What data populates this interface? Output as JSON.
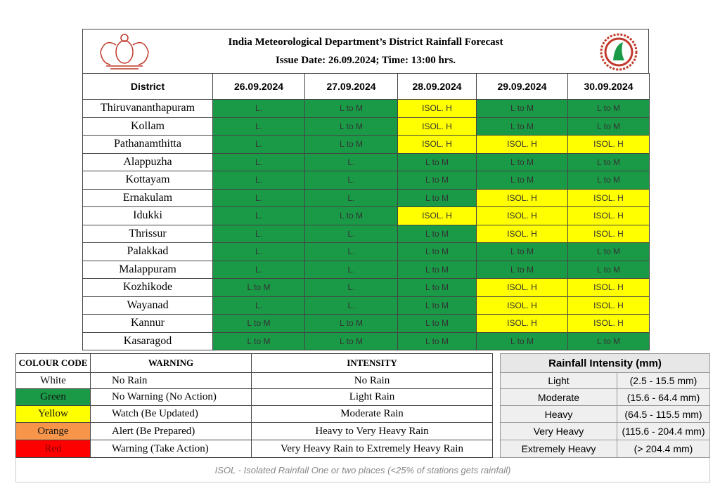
{
  "header": {
    "title": "India Meteorological Department’s District Rainfall Forecast",
    "issue": "Issue Date: 26.09.2024;  Time: 13:00 hrs."
  },
  "table": {
    "columns": [
      "District",
      "26.09.2024",
      "27.09.2024",
      "28.09.2024",
      "29.09.2024",
      "30.09.2024"
    ],
    "rows": [
      {
        "district": "Thiruvananthapuram",
        "forecast": [
          "L.",
          "L to M",
          "ISOL. H",
          "L to M",
          "L to M"
        ],
        "colors": [
          "#1a9a47",
          "#1a9a47",
          "#ffff00",
          "#1a9a47",
          "#1a9a47"
        ]
      },
      {
        "district": "Kollam",
        "forecast": [
          "L.",
          "L to M",
          "ISOL. H",
          "L to M",
          "L to M"
        ],
        "colors": [
          "#1a9a47",
          "#1a9a47",
          "#ffff00",
          "#1a9a47",
          "#1a9a47"
        ]
      },
      {
        "district": "Pathanamthitta",
        "forecast": [
          "L.",
          "L to M",
          "ISOL. H",
          "ISOL. H",
          "ISOL. H"
        ],
        "colors": [
          "#1a9a47",
          "#1a9a47",
          "#ffff00",
          "#ffff00",
          "#ffff00"
        ]
      },
      {
        "district": "Alappuzha",
        "forecast": [
          "L.",
          "L.",
          "L to M",
          "L to M",
          "L to M"
        ],
        "colors": [
          "#1a9a47",
          "#1a9a47",
          "#1a9a47",
          "#1a9a47",
          "#1a9a47"
        ]
      },
      {
        "district": "Kottayam",
        "forecast": [
          "L.",
          "L.",
          "L to M",
          "L to M",
          "L to M"
        ],
        "colors": [
          "#1a9a47",
          "#1a9a47",
          "#1a9a47",
          "#1a9a47",
          "#1a9a47"
        ]
      },
      {
        "district": "Ernakulam",
        "forecast": [
          "L.",
          "L.",
          "L to M",
          "ISOL. H",
          "ISOL. H"
        ],
        "colors": [
          "#1a9a47",
          "#1a9a47",
          "#1a9a47",
          "#ffff00",
          "#ffff00"
        ]
      },
      {
        "district": "Idukki",
        "forecast": [
          "L.",
          "L to M",
          "ISOL. H",
          "ISOL. H",
          "ISOL. H"
        ],
        "colors": [
          "#1a9a47",
          "#1a9a47",
          "#ffff00",
          "#ffff00",
          "#ffff00"
        ]
      },
      {
        "district": "Thrissur",
        "forecast": [
          "L.",
          "L.",
          "L to M",
          "ISOL. H",
          "ISOL. H"
        ],
        "colors": [
          "#1a9a47",
          "#1a9a47",
          "#1a9a47",
          "#ffff00",
          "#ffff00"
        ]
      },
      {
        "district": "Palakkad",
        "forecast": [
          "L.",
          "L.",
          "L to M",
          "L to M",
          "L to M"
        ],
        "colors": [
          "#1a9a47",
          "#1a9a47",
          "#1a9a47",
          "#1a9a47",
          "#1a9a47"
        ]
      },
      {
        "district": "Malappuram",
        "forecast": [
          "L.",
          "L.",
          "L to M",
          "L to M",
          "L to M"
        ],
        "colors": [
          "#1a9a47",
          "#1a9a47",
          "#1a9a47",
          "#1a9a47",
          "#1a9a47"
        ]
      },
      {
        "district": "Kozhikode",
        "forecast": [
          "L to M",
          "L.",
          "L to M",
          "ISOL. H",
          "ISOL. H"
        ],
        "colors": [
          "#1a9a47",
          "#1a9a47",
          "#1a9a47",
          "#ffff00",
          "#ffff00"
        ]
      },
      {
        "district": "Wayanad",
        "forecast": [
          "L.",
          "L.",
          "L to M",
          "ISOL. H",
          "ISOL. H"
        ],
        "colors": [
          "#1a9a47",
          "#1a9a47",
          "#1a9a47",
          "#ffff00",
          "#ffff00"
        ]
      },
      {
        "district": "Kannur",
        "forecast": [
          "L to M",
          "L to M",
          "L to M",
          "ISOL. H",
          "ISOL. H"
        ],
        "colors": [
          "#1a9a47",
          "#1a9a47",
          "#1a9a47",
          "#ffff00",
          "#ffff00"
        ]
      },
      {
        "district": "Kasaragod",
        "forecast": [
          "L to M",
          "L to M",
          "L to M",
          "L to M",
          "L to M"
        ],
        "colors": [
          "#1a9a47",
          "#1a9a47",
          "#1a9a47",
          "#1a9a47",
          "#1a9a47"
        ]
      }
    ]
  },
  "legend": {
    "columns": [
      "COLOUR CODE",
      "WARNING",
      "INTENSITY"
    ],
    "rows": [
      {
        "code": "White",
        "color": "#ffffff",
        "warning": "No Rain",
        "intensity": "No Rain"
      },
      {
        "code": "Green",
        "color": "#1a9a47",
        "warning": "No Warning (No Action)",
        "intensity": "Light Rain"
      },
      {
        "code": "Yellow",
        "color": "#ffff00",
        "warning": "Watch (Be Updated)",
        "intensity": "Moderate Rain"
      },
      {
        "code": "Orange",
        "color": "#f7964a",
        "warning": "Alert  (Be Prepared)",
        "intensity": "Heavy to Very Heavy Rain"
      },
      {
        "code": "Red",
        "color": "#ff0000",
        "warning": "Warning (Take Action)",
        "intensity": "Very  Heavy Rain to Extremely  Heavy Rain"
      }
    ]
  },
  "intensity_table": {
    "title": "Rainfall Intensity (mm)",
    "rows": [
      {
        "category": "Light",
        "range": "(2.5 - 15.5 mm)"
      },
      {
        "category": "Moderate",
        "range": "(15.6 - 64.4 mm)"
      },
      {
        "category": "Heavy",
        "range": "(64.5 - 115.5 mm)"
      },
      {
        "category": "Very Heavy",
        "range": "(115.6 - 204.4 mm)"
      },
      {
        "category": "Extremely Heavy",
        "range": "(> 204.4 mm)"
      }
    ]
  },
  "footnote": "ISOL - Isolated Rainfall One or two places (<25% of stations gets rainfall)"
}
